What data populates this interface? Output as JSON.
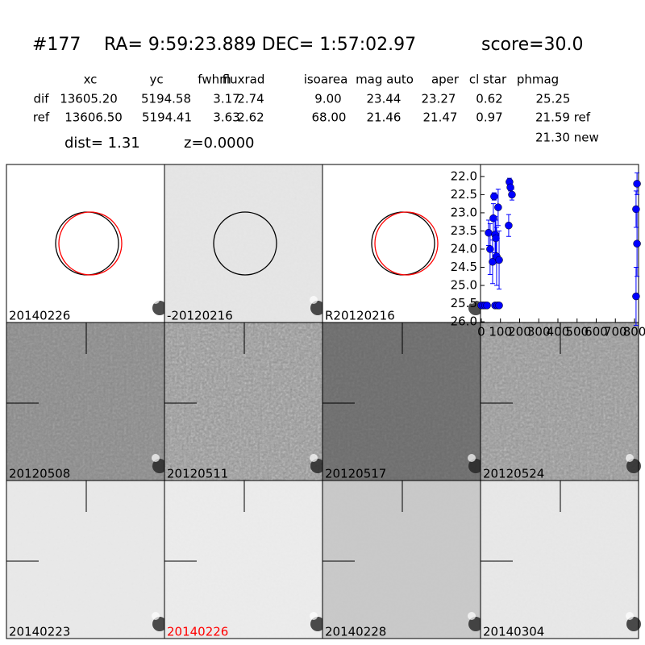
{
  "header": {
    "id": "#177",
    "coords": "RA= 9:59:23.889 DEC= 1:57:02.97",
    "score": "score=30.0"
  },
  "table": {
    "columns": [
      "xc",
      "yc",
      "fwhm",
      "fluxrad",
      "isoarea",
      "mag auto",
      "aper",
      "cl star",
      "phmag"
    ],
    "rows": [
      {
        "label": "dif",
        "cells": [
          "13605.20",
          "5194.58",
          "3.17",
          "2.74",
          "9.00",
          "23.44",
          "23.27",
          "0.62",
          "25.25"
        ]
      },
      {
        "label": "ref",
        "cells": [
          "13606.50",
          "5194.41",
          "3.63",
          "2.62",
          "68.00",
          "21.46",
          "21.47",
          "0.97",
          "21.59 ref"
        ]
      }
    ],
    "note": "21.30 new"
  },
  "dist": "dist=  1.31",
  "z": "z=0.0000",
  "panels": [
    {
      "label": "20140226",
      "color": "#000000"
    },
    {
      "label": "-20120216",
      "color": "#000000"
    },
    {
      "label": "R20120216",
      "color": "#000000"
    },
    {
      "label": "20120508",
      "color": "#000000"
    },
    {
      "label": "20120511",
      "color": "#000000"
    },
    {
      "label": "20120517",
      "color": "#000000"
    },
    {
      "label": "20120524",
      "color": "#000000"
    },
    {
      "label": "20140223",
      "color": "#000000"
    },
    {
      "label": "20140226",
      "color": "#ff0000"
    },
    {
      "label": "20140228",
      "color": "#000000"
    },
    {
      "label": "20140304",
      "color": "#000000"
    }
  ],
  "chart_data": {
    "type": "scatter",
    "color": "#0000ff",
    "xlim": [
      -4,
      821
    ],
    "ylim": [
      26.02,
      21.67
    ],
    "xticks": [
      0,
      100,
      200,
      300,
      400,
      500,
      600,
      700,
      800
    ],
    "yticks": [
      {
        "value": 22,
        "label": "22.0"
      },
      {
        "value": 22.5,
        "label": "22.5"
      },
      {
        "value": 23,
        "label": "23.0"
      },
      {
        "value": 23.5,
        "label": "23.5"
      },
      {
        "value": 24,
        "label": "24.0"
      },
      {
        "value": 24.5,
        "label": "24.5"
      },
      {
        "value": 25,
        "label": "25.0"
      },
      {
        "value": 25.5,
        "label": "25.5"
      },
      {
        "value": 26,
        "label": "26.0"
      }
    ],
    "x": [
      0,
      10,
      20,
      30,
      38,
      46,
      59,
      63,
      67,
      72,
      76,
      80,
      88,
      93,
      72,
      84,
      93,
      143,
      147,
      152,
      160,
      808,
      813,
      813,
      808
    ],
    "y": [
      25.55,
      25.55,
      25.55,
      25.55,
      23.55,
      24.0,
      24.35,
      23.15,
      22.55,
      23.6,
      23.7,
      24.2,
      22.85,
      24.3,
      25.55,
      25.55,
      25.55,
      23.35,
      22.15,
      22.3,
      22.5,
      22.9,
      23.85,
      22.2,
      25.3
    ],
    "err": [
      0,
      0,
      0,
      0,
      0.35,
      0.7,
      0.6,
      0.4,
      0.1,
      0.5,
      0.5,
      0.8,
      0.5,
      0.8,
      0,
      0,
      0,
      0.3,
      0.1,
      0.1,
      0.15,
      0.5,
      0.9,
      0.3,
      0.8
    ]
  }
}
